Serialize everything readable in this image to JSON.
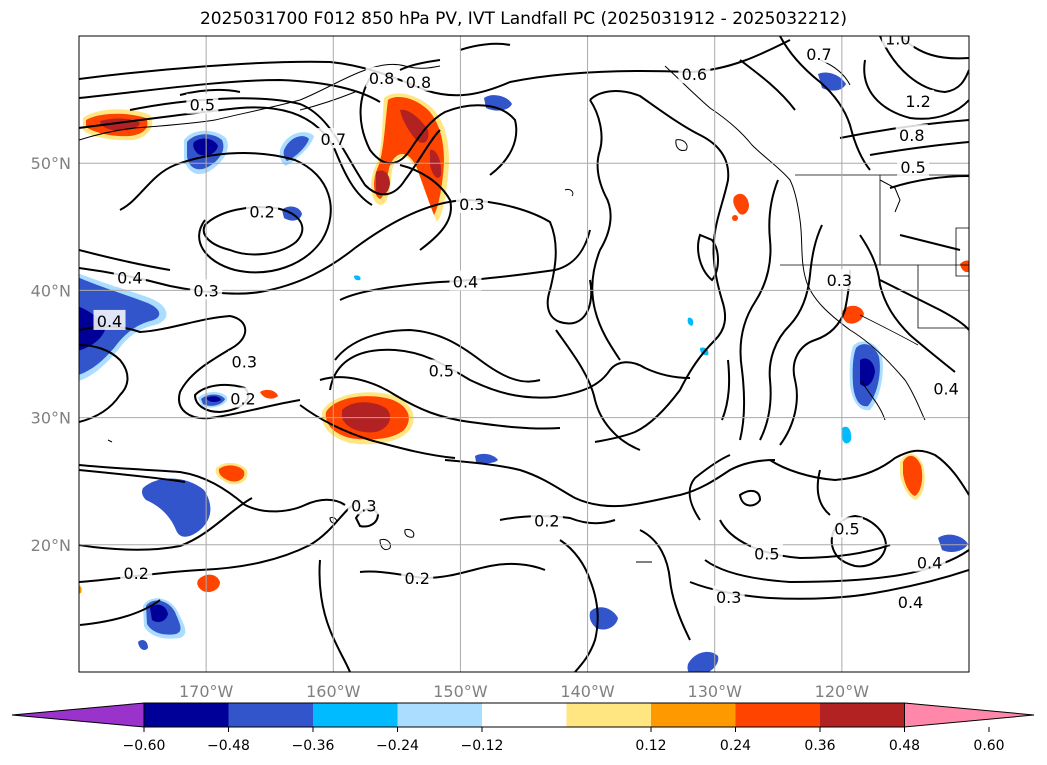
{
  "title": "2025031700 F012 850 hPa PV, IVT Landfall PC (2025031912 - 2025032212)",
  "map_data": {
    "type": "contour_map",
    "projection": "lat-lon",
    "lon_range": [
      -180,
      -110
    ],
    "lat_range": [
      10,
      60
    ],
    "gridlines": true,
    "lat_ticks": [
      {
        "label": "50°N",
        "lat": 50
      },
      {
        "label": "40°N",
        "lat": 40
      },
      {
        "label": "30°N",
        "lat": 30
      },
      {
        "label": "20°N",
        "lat": 20
      }
    ],
    "lon_ticks": [
      {
        "label": "170°W",
        "lon": -170
      },
      {
        "label": "160°W",
        "lon": -160
      },
      {
        "label": "150°W",
        "lon": -150
      },
      {
        "label": "140°W",
        "lon": -140
      },
      {
        "label": "130°W",
        "lon": -130
      },
      {
        "label": "120°W",
        "lon": -120
      }
    ],
    "contour_labels": [
      {
        "text": "0.5",
        "lon": -170.3,
        "lat": 54.6
      },
      {
        "text": "0.8",
        "lon": -156.2,
        "lat": 56.7
      },
      {
        "text": "0.8",
        "lon": -153.3,
        "lat": 56.4
      },
      {
        "text": "0.7",
        "lon": -160.0,
        "lat": 51.9
      },
      {
        "text": "0.6",
        "lon": -131.6,
        "lat": 57.0
      },
      {
        "text": "0.7",
        "lon": -121.8,
        "lat": 58.6
      },
      {
        "text": "1.0",
        "lon": -115.6,
        "lat": 59.8
      },
      {
        "text": "1.2",
        "lon": -114.0,
        "lat": 54.9
      },
      {
        "text": "0.8",
        "lon": -114.5,
        "lat": 52.2
      },
      {
        "text": "0.5",
        "lon": -114.4,
        "lat": 49.7
      },
      {
        "text": "0.2",
        "lon": -165.6,
        "lat": 46.2
      },
      {
        "text": "0.3",
        "lon": -149.1,
        "lat": 46.8
      },
      {
        "text": "0.4",
        "lon": -176.0,
        "lat": 41.0
      },
      {
        "text": "0.4",
        "lon": -177.6,
        "lat": 37.6
      },
      {
        "text": "0.3",
        "lon": -170.0,
        "lat": 40.0
      },
      {
        "text": "0.4",
        "lon": -149.6,
        "lat": 40.7
      },
      {
        "text": "0.3",
        "lon": -120.2,
        "lat": 40.8
      },
      {
        "text": "0.3",
        "lon": -167.0,
        "lat": 34.4
      },
      {
        "text": "0.2",
        "lon": -167.1,
        "lat": 31.5
      },
      {
        "text": "0.5",
        "lon": -151.5,
        "lat": 33.7
      },
      {
        "text": "0.4",
        "lon": -111.8,
        "lat": 32.3
      },
      {
        "text": "0.3",
        "lon": -157.6,
        "lat": 23.1
      },
      {
        "text": "0.2",
        "lon": -143.2,
        "lat": 21.9
      },
      {
        "text": "0.5",
        "lon": -125.9,
        "lat": 19.3
      },
      {
        "text": "0.5",
        "lon": -119.6,
        "lat": 21.3
      },
      {
        "text": "0.2",
        "lon": -175.5,
        "lat": 17.8
      },
      {
        "text": "0.2",
        "lon": -153.4,
        "lat": 17.4
      },
      {
        "text": "0.4",
        "lon": -113.1,
        "lat": 18.6
      },
      {
        "text": "0.3",
        "lon": -128.9,
        "lat": 15.9
      },
      {
        "text": "0.4",
        "lon": -114.6,
        "lat": 15.5
      }
    ]
  },
  "colorbar": {
    "ticks": [
      "−0.60",
      "−0.48",
      "−0.36",
      "−0.24",
      "−0.12",
      "0.12",
      "0.24",
      "0.36",
      "0.48",
      "0.60"
    ],
    "extend": "both",
    "colors": [
      "#9933cc",
      "#000099",
      "#3355cc",
      "#00bbff",
      "#aaddff",
      "#ffffff",
      "#ffe680",
      "#ff9900",
      "#ff4400",
      "#b22222",
      "#ff88aa"
    ]
  },
  "fill_colors": {
    "neg_light": "#aaddff",
    "neg_cyan": "#00bbff",
    "neg_blue": "#3355cc",
    "neg_navy": "#000099",
    "pos_yellow": "#ffe680",
    "pos_orange": "#ff9900",
    "pos_red": "#ff4400",
    "pos_dark": "#b22222"
  }
}
